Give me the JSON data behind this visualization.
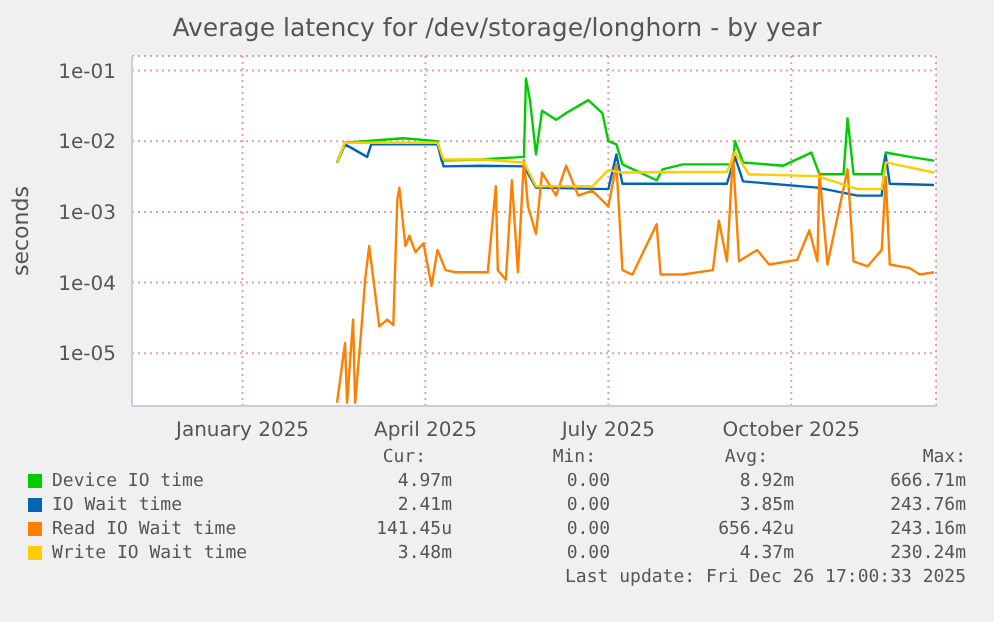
{
  "chart_data": {
    "type": "line",
    "title": "Average latency for /dev/storage/longhorn - by year",
    "ylabel": "seconds",
    "log": "y",
    "grid": true,
    "legend": "bottom",
    "marker": "none",
    "line_style": "solid",
    "xlim": [
      "2024-11-22",
      "2025-12-27"
    ],
    "xticks": [
      {
        "value": "2025-01-16",
        "label": "January 2025"
      },
      {
        "value": "2025-04-17",
        "label": "April 2025"
      },
      {
        "value": "2025-07-17",
        "label": "July 2025"
      },
      {
        "value": "2025-10-16",
        "label": "October 2025"
      }
    ],
    "ylim": [
      1.8e-06,
      0.16
    ],
    "yticks": [
      {
        "value": 1e-05,
        "label": "1e-05"
      },
      {
        "value": 0.0001,
        "label": "1e-04"
      },
      {
        "value": 0.001,
        "label": "1e-03"
      },
      {
        "value": 0.01,
        "label": "1e-02"
      },
      {
        "value": 0.1,
        "label": "1e-01"
      }
    ],
    "series": [
      {
        "name": "Device IO time",
        "color": "#00cc00",
        "x": [
          "2025-03-04",
          "2025-03-08",
          "2025-04-06",
          "2025-04-23",
          "2025-04-25",
          "2025-05-15",
          "2025-06-05",
          "2025-06-06",
          "2025-06-08",
          "2025-06-11",
          "2025-06-14",
          "2025-06-21",
          "2025-06-26",
          "2025-07-07",
          "2025-07-14",
          "2025-07-17",
          "2025-07-21",
          "2025-07-24",
          "2025-08-10",
          "2025-08-13",
          "2025-08-23",
          "2025-09-17",
          "2025-09-18",
          "2025-09-22",
          "2025-10-12",
          "2025-10-26",
          "2025-10-30",
          "2025-11-11",
          "2025-11-13",
          "2025-11-16",
          "2025-11-30",
          "2025-12-02",
          "2025-12-14",
          "2025-12-26"
        ],
        "values": [
          0.005,
          0.0095,
          0.011,
          0.01,
          0.0053,
          0.0055,
          0.006,
          0.077,
          0.038,
          0.0065,
          0.027,
          0.02,
          0.025,
          0.038,
          0.025,
          0.01,
          0.009,
          0.0047,
          0.0028,
          0.004,
          0.0047,
          0.0047,
          0.01,
          0.005,
          0.0045,
          0.0069,
          0.0034,
          0.0034,
          0.021,
          0.0034,
          0.0034,
          0.0069,
          0.006,
          0.0053
        ]
      },
      {
        "name": "IO Wait time",
        "color": "#0066b3",
        "x": [
          "2025-03-04",
          "2025-03-08",
          "2025-03-19",
          "2025-03-21",
          "2025-04-23",
          "2025-04-26",
          "2025-05-15",
          "2025-06-05",
          "2025-06-11",
          "2025-07-17",
          "2025-07-21",
          "2025-07-24",
          "2025-09-14",
          "2025-09-18",
          "2025-09-22",
          "2025-10-29",
          "2025-11-18",
          "2025-11-30",
          "2025-12-02",
          "2025-12-04",
          "2025-12-26"
        ],
        "values": [
          0.005,
          0.009,
          0.006,
          0.009,
          0.009,
          0.0044,
          0.0045,
          0.0044,
          0.0022,
          0.0021,
          0.0065,
          0.0025,
          0.0025,
          0.006,
          0.0027,
          0.0022,
          0.0017,
          0.0017,
          0.0063,
          0.0025,
          0.0024
        ]
      },
      {
        "name": "Read IO Wait time",
        "color": "#ff8000",
        "x": [
          "2025-03-04",
          "2025-03-08",
          "2025-03-09",
          "2025-03-12",
          "2025-03-13",
          "2025-03-16",
          "2025-03-18",
          "2025-03-20",
          "2025-03-23",
          "2025-03-25",
          "2025-03-29",
          "2025-04-01",
          "2025-04-03",
          "2025-04-04",
          "2025-04-07",
          "2025-04-09",
          "2025-04-12",
          "2025-04-16",
          "2025-04-20",
          "2025-04-23",
          "2025-04-27",
          "2025-05-02",
          "2025-05-18",
          "2025-05-22",
          "2025-05-23",
          "2025-05-27",
          "2025-05-30",
          "2025-06-02",
          "2025-06-05",
          "2025-06-07",
          "2025-06-11",
          "2025-06-14",
          "2025-06-21",
          "2025-06-26",
          "2025-07-02",
          "2025-07-09",
          "2025-07-17",
          "2025-07-21",
          "2025-07-24",
          "2025-07-29",
          "2025-08-10",
          "2025-08-12",
          "2025-08-23",
          "2025-09-07",
          "2025-09-10",
          "2025-09-14",
          "2025-09-17",
          "2025-09-20",
          "2025-09-29",
          "2025-10-05",
          "2025-10-19",
          "2025-10-25",
          "2025-10-29",
          "2025-10-30",
          "2025-11-03",
          "2025-11-13",
          "2025-11-16",
          "2025-11-23",
          "2025-11-30",
          "2025-12-02",
          "2025-12-04",
          "2025-12-14",
          "2025-12-19",
          "2025-12-26"
        ],
        "values": [
          2e-06,
          1.4e-05,
          2e-06,
          3e-05,
          2e-06,
          2e-05,
          0.00011,
          0.00033,
          7e-05,
          2.4e-05,
          3e-05,
          2.5e-05,
          0.0015,
          0.0022,
          0.00033,
          0.00046,
          0.00027,
          0.00036,
          9e-05,
          0.00029,
          0.00015,
          0.00014,
          0.00014,
          0.0023,
          0.00015,
          0.00011,
          0.0028,
          0.00014,
          0.0054,
          0.0012,
          0.00049,
          0.0036,
          0.0017,
          0.0045,
          0.0017,
          0.002,
          0.0012,
          0.0047,
          0.00015,
          0.00013,
          0.00067,
          0.00013,
          0.00013,
          0.00015,
          0.00075,
          0.0002,
          0.0065,
          0.0002,
          0.00029,
          0.00018,
          0.00021,
          0.00055,
          0.0002,
          0.0036,
          0.00018,
          0.004,
          0.0002,
          0.00017,
          0.00029,
          0.0031,
          0.00018,
          0.00016,
          0.00013,
          0.00014
        ]
      },
      {
        "name": "Write IO Wait time",
        "color": "#ffcc00",
        "x": [
          "2025-03-04",
          "2025-03-08",
          "2025-04-23",
          "2025-04-26",
          "2025-05-15",
          "2025-06-05",
          "2025-06-11",
          "2025-07-09",
          "2025-07-17",
          "2025-07-24",
          "2025-09-14",
          "2025-09-18",
          "2025-09-25",
          "2025-10-29",
          "2025-11-18",
          "2025-11-30",
          "2025-12-02",
          "2025-12-26"
        ],
        "values": [
          0.005,
          0.0095,
          0.0095,
          0.0055,
          0.0055,
          0.005,
          0.0023,
          0.0023,
          0.0039,
          0.0036,
          0.0037,
          0.007,
          0.0034,
          0.0032,
          0.0021,
          0.0021,
          0.005,
          0.0036
        ]
      }
    ],
    "annotations": [
      "Cur:",
      "Min:",
      "Avg:",
      "Max:",
      "4.97m",
      "0.00",
      "8.92m",
      "666.71m",
      "2.41m",
      "0.00",
      "3.85m",
      "243.76m",
      "141.45u",
      "0.00",
      "656.42u",
      "243.16m",
      "3.48m",
      "0.00",
      "4.37m",
      "230.24m",
      "Last update: Fri Dec 26 17:00:33 2025"
    ]
  }
}
